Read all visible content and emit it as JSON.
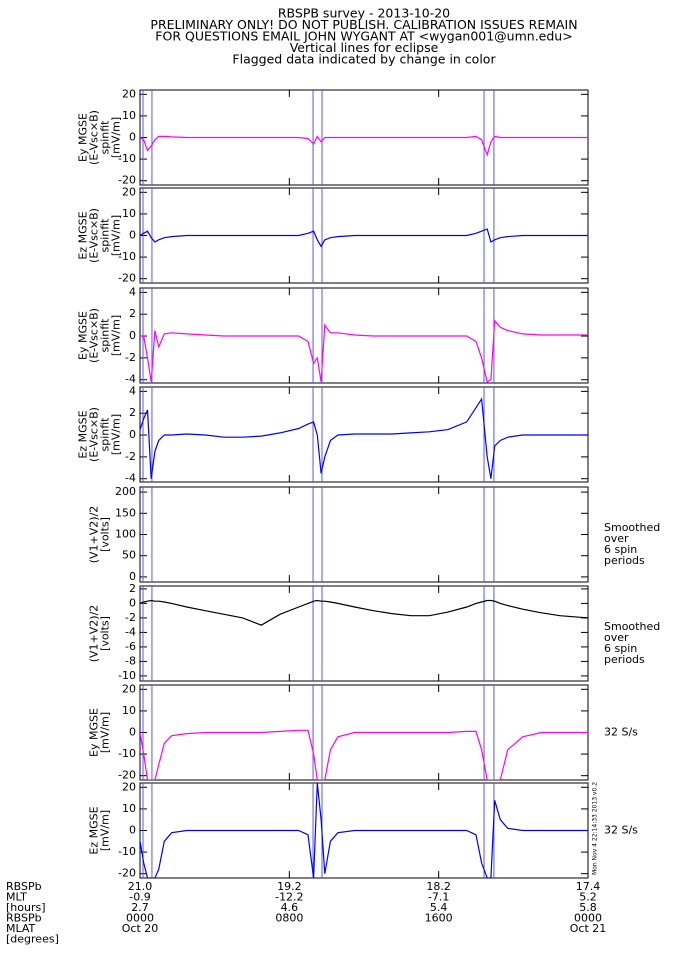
{
  "chart_data": {
    "type": "stacked-line-panels",
    "title_lines": [
      "RBSPB survey - 2013-10-20",
      "PRELIMINARY ONLY! DO NOT PUBLISH. CALIBRATION ISSUES REMAIN",
      "FOR QUESTIONS EMAIL JOHN WYGANT AT <wygan001@umn.edu>",
      "Vertical lines for eclipse",
      "Flagged data indicated by change in color"
    ],
    "xlim": [
      0,
      24
    ],
    "xticks": [
      {
        "value": 0,
        "label": "0000"
      },
      {
        "value": 8,
        "label": "0800"
      },
      {
        "value": 16,
        "label": "1600"
      },
      {
        "value": 24,
        "label": "0000"
      }
    ],
    "dates": [
      "Oct 20",
      null,
      null,
      "Oct 21"
    ],
    "ephemeris": {
      "labels": [
        "RBSPb",
        "MLT",
        "[hours]",
        "RBSPb",
        "MLAT",
        "[degrees]"
      ],
      "rows": [
        [
          "21.0",
          "19.2",
          "18.2",
          "17.4"
        ],
        [
          "-0.9",
          "-12.2",
          "-7.1",
          "5.2"
        ],
        [
          "2.7",
          "4.6",
          "5.4",
          "5.8"
        ]
      ]
    },
    "eclipse_lines": [
      0.16,
      0.64,
      9.27,
      9.75,
      18.43,
      18.96
    ],
    "eclipse_color": "#5555ff",
    "stamp": "Mon Nov  4 22:14:33 2013 v0.2",
    "x": [
      0,
      0.2,
      0.4,
      0.6,
      0.8,
      1.0,
      1.3,
      1.7,
      2.5,
      3.5,
      4.5,
      5.5,
      6.5,
      7.5,
      8.5,
      9.0,
      9.3,
      9.5,
      9.7,
      9.9,
      10.2,
      10.6,
      11.5,
      12.5,
      13.5,
      14.5,
      15.5,
      16.5,
      17.5,
      18.0,
      18.3,
      18.6,
      18.8,
      19.0,
      19.3,
      19.7,
      20.5,
      21.5,
      22.5,
      23.5,
      24
    ],
    "panels": [
      {
        "ylabel": [
          "Ey MGSE",
          "(E-Vsc×B)",
          "spinfit",
          "[mV/m]"
        ],
        "ylim": [
          -22,
          22
        ],
        "yticks": [
          -20,
          -10,
          0,
          10,
          20
        ],
        "series": [
          {
            "color": "#ff00ff",
            "values": [
              0,
              -1,
              -6,
              -4,
              -1,
              0.5,
              0.5,
              0.3,
              0,
              0,
              0,
              0,
              0,
              0,
              0,
              -0.5,
              -3,
              0.5,
              -2,
              0,
              0,
              0,
              0,
              0,
              0,
              0,
              0,
              0,
              0,
              0.5,
              -1,
              -8,
              -2,
              0.5,
              0,
              0,
              0,
              0,
              0,
              0,
              0
            ]
          }
        ]
      },
      {
        "ylabel": [
          "Ez MGSE",
          "(E-Vsc×B)",
          "spinfit",
          "[mV/m]"
        ],
        "ylim": [
          -22,
          22
        ],
        "yticks": [
          -20,
          -10,
          0,
          10,
          20
        ],
        "series": [
          {
            "color": "#0000ff",
            "values": [
              0,
              1,
              2,
              -1,
              -3,
              -2,
              -1,
              -0.5,
              0,
              0,
              0,
              0,
              0,
              0,
              0,
              1,
              2,
              -2,
              -5,
              -2,
              -1,
              -0.5,
              0,
              0,
              0,
              0,
              0,
              0,
              0,
              1,
              2,
              3,
              -3,
              -2,
              -1,
              -0.5,
              0,
              0,
              0,
              0,
              0
            ]
          }
        ]
      },
      {
        "ylabel": [
          "Ey MGSE",
          "(E-Vsc×B)",
          "spinfit",
          "[mV/m]"
        ],
        "ylim": [
          -4.3,
          4.4
        ],
        "yticks": [
          -4,
          -2,
          0,
          2,
          4
        ],
        "series": [
          {
            "color": "#ff00ff",
            "values": [
              0,
              0,
              -2,
              -4.2,
              0.5,
              -1,
              0.2,
              0.3,
              0.2,
              0.1,
              0,
              0,
              0,
              0,
              0,
              -0.5,
              -2.5,
              -2,
              -4.2,
              1,
              0.3,
              0.3,
              0.1,
              0,
              0,
              0,
              0,
              0,
              0,
              -0.5,
              -2,
              -4.2,
              -4,
              1.4,
              0.8,
              0.5,
              0.2,
              0.1,
              0.1,
              0.1,
              0.1
            ]
          }
        ]
      },
      {
        "ylabel": [
          "Ez MGSE",
          "(E-Vsc×B)",
          "spinfit",
          "[mV/m]"
        ],
        "ylim": [
          -4.3,
          4.4
        ],
        "yticks": [
          -4,
          -2,
          0,
          2,
          4
        ],
        "series": [
          {
            "color": "#0000ff",
            "values": [
              0.5,
              1.5,
              2.3,
              -4,
              -1.5,
              -0.5,
              0,
              0,
              0.1,
              0,
              -0.2,
              -0.2,
              -0.1,
              0.2,
              0.6,
              1,
              1.2,
              0,
              -3.5,
              -2,
              -0.5,
              0,
              0.1,
              0.1,
              0.1,
              0.2,
              0.3,
              0.5,
              1.2,
              2.5,
              3.3,
              -2,
              -4,
              -1,
              -0.5,
              -0.2,
              0,
              0,
              0,
              0,
              0
            ]
          }
        ]
      },
      {
        "ylabel": [
          "(V1+V2)/2",
          "[volts]"
        ],
        "ylim": [
          -12,
          212
        ],
        "yticks": [
          0,
          50,
          100,
          150,
          200
        ],
        "note": [
          "Smoothed",
          "over",
          "6 spin",
          "periods"
        ],
        "series": []
      },
      {
        "ylabel": [
          "(V1+V2)/2",
          "[volts]"
        ],
        "ylim": [
          -10.7,
          2.4
        ],
        "yticks": [
          -10,
          -8,
          -6,
          -4,
          -2,
          0,
          2
        ],
        "note": [
          "Smoothed",
          "over",
          "6 spin",
          "periods"
        ],
        "series": [
          {
            "color": "#000000",
            "values": [
              0,
              0.2,
              0.3,
              0.4,
              0.3,
              0.3,
              0.2,
              0,
              -0.5,
              -1,
              -1.5,
              -2,
              -3,
              -1.5,
              -0.5,
              0,
              0.3,
              0.4,
              0.3,
              0.3,
              0.2,
              0,
              -0.5,
              -1,
              -1.4,
              -1.7,
              -1.7,
              -1.2,
              -0.5,
              0,
              0.2,
              0.4,
              0.4,
              0.3,
              0,
              -0.3,
              -0.8,
              -1.3,
              -1.7,
              -1.9,
              -2
            ]
          }
        ]
      },
      {
        "ylabel": [
          "Ey MGSE",
          "[mV/m]"
        ],
        "ylim": [
          -22,
          22
        ],
        "yticks": [
          -20,
          -10,
          0,
          10,
          20
        ],
        "note": [
          "32 S/s"
        ],
        "note_color": "#ff00ff",
        "series": [
          {
            "color": "#ff00ff",
            "values": [
              0,
              -10,
              -22,
              -22,
              -22,
              -15,
              -5,
              -1.5,
              -0.5,
              0,
              0,
              0,
              0,
              0.5,
              1,
              1,
              -10,
              -22,
              -22,
              -22,
              -8,
              -2,
              0,
              0,
              0,
              0,
              0,
              0,
              0.5,
              0.5,
              -8,
              -22,
              -22,
              -22,
              -22,
              -8,
              -2,
              0,
              0,
              0,
              0
            ]
          }
        ]
      },
      {
        "ylabel": [
          "Ez MGSE",
          "[mV/m]"
        ],
        "ylim": [
          -22,
          22
        ],
        "yticks": [
          -20,
          -10,
          0,
          10,
          20
        ],
        "note": [
          "32 S/s"
        ],
        "note_color": "#0000ff",
        "series": [
          {
            "color": "#0000ff",
            "values": [
              -5,
              -15,
              -22,
              -22,
              -22,
              -18,
              -5,
              -1,
              0,
              0,
              0,
              0,
              0,
              0,
              0,
              -2,
              -22,
              22,
              5,
              -20,
              -5,
              -1,
              0,
              0,
              0,
              0,
              0,
              0,
              0,
              -2,
              -15,
              -22,
              -22,
              14,
              5,
              1,
              0,
              0,
              0,
              0,
              0
            ]
          }
        ]
      }
    ]
  }
}
